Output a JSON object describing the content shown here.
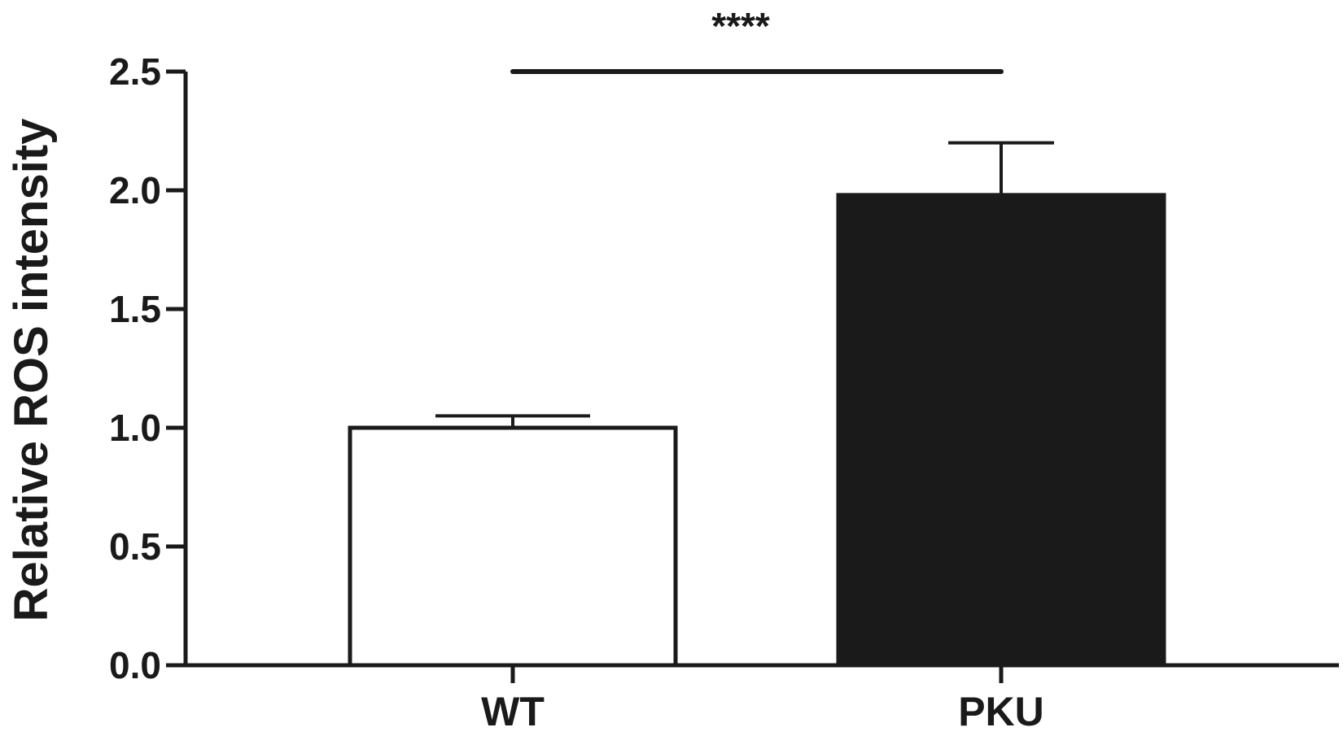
{
  "chart_data": {
    "type": "bar",
    "categories": [
      "WT",
      "PKU"
    ],
    "values": [
      1.0,
      1.98
    ],
    "error": [
      0.05,
      0.22
    ],
    "bar_colors": [
      "#ffffff",
      "#1a1a1a"
    ],
    "ylabel": "Relative ROS intensity",
    "xlabel": "",
    "ylim": [
      0,
      2.5
    ],
    "yticks": [
      "0.0",
      "0.5",
      "1.0",
      "1.5",
      "2.0",
      "2.5"
    ],
    "significance": {
      "label": "****",
      "between": [
        "WT",
        "PKU"
      ],
      "y": 2.5
    },
    "grid": false,
    "legend": "none"
  }
}
